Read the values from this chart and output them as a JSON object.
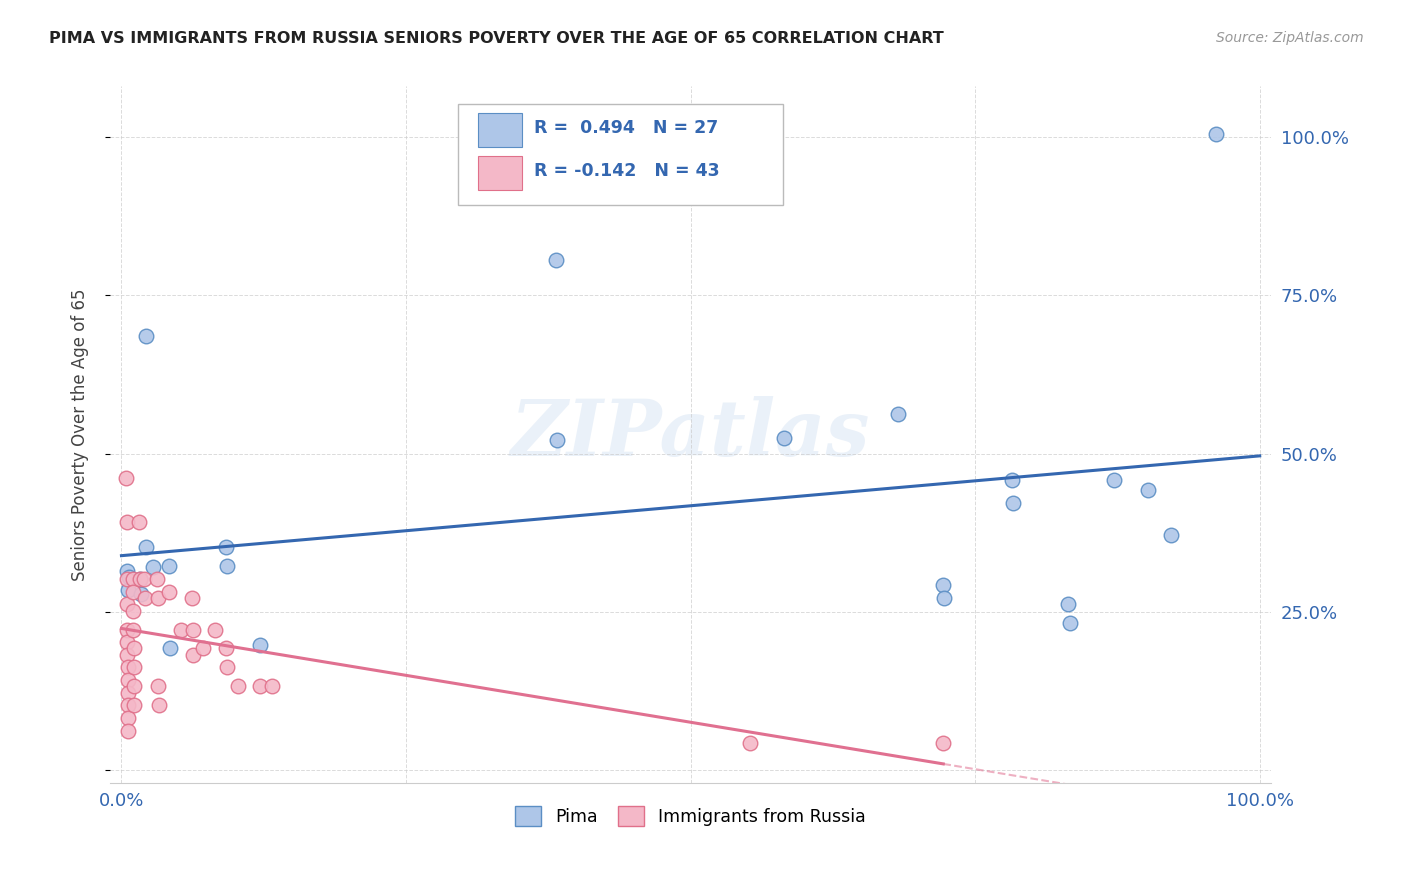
{
  "title": "PIMA VS IMMIGRANTS FROM RUSSIA SENIORS POVERTY OVER THE AGE OF 65 CORRELATION CHART",
  "source": "Source: ZipAtlas.com",
  "ylabel": "Seniors Poverty Over the Age of 65",
  "pima_color": "#aec6e8",
  "pima_edge_color": "#5b8ec4",
  "russia_color": "#f4b8c8",
  "russia_edge_color": "#e0708a",
  "pima_line_color": "#3467b0",
  "russia_line_color": "#e07090",
  "pima_R": 0.494,
  "pima_N": 27,
  "russia_R": -0.142,
  "russia_N": 43,
  "watermark": "ZIPatlas",
  "background_color": "#ffffff",
  "grid_color": "#cccccc",
  "pima_points": [
    [
      0.022,
      0.685
    ],
    [
      0.005,
      0.315
    ],
    [
      0.006,
      0.285
    ],
    [
      0.007,
      0.305
    ],
    [
      0.016,
      0.302
    ],
    [
      0.017,
      0.278
    ],
    [
      0.022,
      0.352
    ],
    [
      0.028,
      0.32
    ],
    [
      0.042,
      0.322
    ],
    [
      0.043,
      0.193
    ],
    [
      0.092,
      0.352
    ],
    [
      0.093,
      0.322
    ],
    [
      0.122,
      0.198
    ],
    [
      0.382,
      0.805
    ],
    [
      0.383,
      0.522
    ],
    [
      0.582,
      0.525
    ],
    [
      0.682,
      0.562
    ],
    [
      0.722,
      0.292
    ],
    [
      0.723,
      0.272
    ],
    [
      0.782,
      0.458
    ],
    [
      0.783,
      0.422
    ],
    [
      0.832,
      0.262
    ],
    [
      0.833,
      0.232
    ],
    [
      0.872,
      0.458
    ],
    [
      0.902,
      0.442
    ],
    [
      0.922,
      0.372
    ],
    [
      0.962,
      1.005
    ]
  ],
  "russia_points": [
    [
      0.004,
      0.462
    ],
    [
      0.005,
      0.392
    ],
    [
      0.005,
      0.302
    ],
    [
      0.005,
      0.262
    ],
    [
      0.005,
      0.222
    ],
    [
      0.005,
      0.202
    ],
    [
      0.005,
      0.182
    ],
    [
      0.006,
      0.162
    ],
    [
      0.006,
      0.142
    ],
    [
      0.006,
      0.122
    ],
    [
      0.006,
      0.102
    ],
    [
      0.006,
      0.082
    ],
    [
      0.006,
      0.062
    ],
    [
      0.01,
      0.302
    ],
    [
      0.01,
      0.282
    ],
    [
      0.01,
      0.252
    ],
    [
      0.01,
      0.222
    ],
    [
      0.011,
      0.192
    ],
    [
      0.011,
      0.162
    ],
    [
      0.011,
      0.132
    ],
    [
      0.011,
      0.102
    ],
    [
      0.015,
      0.392
    ],
    [
      0.016,
      0.302
    ],
    [
      0.02,
      0.302
    ],
    [
      0.021,
      0.272
    ],
    [
      0.031,
      0.302
    ],
    [
      0.032,
      0.272
    ],
    [
      0.032,
      0.132
    ],
    [
      0.033,
      0.102
    ],
    [
      0.042,
      0.282
    ],
    [
      0.052,
      0.222
    ],
    [
      0.062,
      0.272
    ],
    [
      0.063,
      0.222
    ],
    [
      0.063,
      0.182
    ],
    [
      0.072,
      0.192
    ],
    [
      0.082,
      0.222
    ],
    [
      0.092,
      0.192
    ],
    [
      0.093,
      0.162
    ],
    [
      0.102,
      0.132
    ],
    [
      0.122,
      0.132
    ],
    [
      0.132,
      0.132
    ],
    [
      0.552,
      0.042
    ],
    [
      0.722,
      0.042
    ]
  ]
}
